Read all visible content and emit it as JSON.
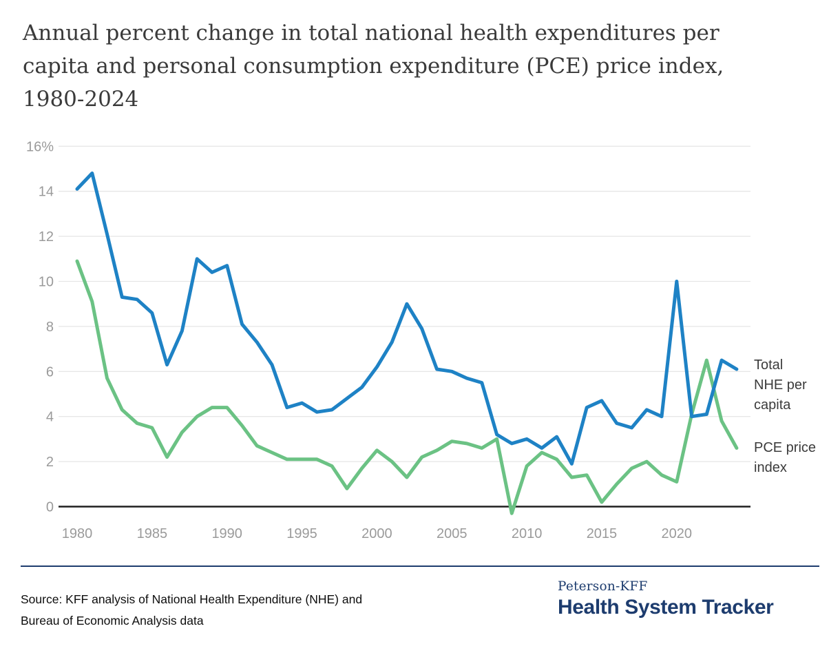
{
  "title_lines": [
    "Annual percent change in total national health expenditures per",
    "capita and personal consumption expenditure (PCE) price index,",
    "1980-2024"
  ],
  "chart_data": {
    "type": "line",
    "x": [
      1980,
      1981,
      1982,
      1983,
      1984,
      1985,
      1986,
      1987,
      1988,
      1989,
      1990,
      1991,
      1992,
      1993,
      1994,
      1995,
      1996,
      1997,
      1998,
      1999,
      2000,
      2001,
      2002,
      2003,
      2004,
      2005,
      2006,
      2007,
      2008,
      2009,
      2010,
      2011,
      2012,
      2013,
      2014,
      2015,
      2016,
      2017,
      2018,
      2019,
      2020,
      2021,
      2022,
      2023,
      2024
    ],
    "series": [
      {
        "name": "Total NHE per capita",
        "color": "#1e82c5",
        "values": [
          14.1,
          14.8,
          12.1,
          9.3,
          9.2,
          8.6,
          6.3,
          7.8,
          11.0,
          10.4,
          10.7,
          8.1,
          7.3,
          6.3,
          4.4,
          4.6,
          4.2,
          4.3,
          4.8,
          5.3,
          6.2,
          7.3,
          9.0,
          7.9,
          6.1,
          6.0,
          5.7,
          5.5,
          3.2,
          2.8,
          3.0,
          2.6,
          3.1,
          1.9,
          4.4,
          4.7,
          3.7,
          3.5,
          4.3,
          4.0,
          10.0,
          4.0,
          4.1,
          6.5,
          6.1
        ]
      },
      {
        "name": "PCE price index",
        "color": "#6bc284",
        "values": [
          10.9,
          9.1,
          5.7,
          4.3,
          3.7,
          3.5,
          2.2,
          3.3,
          4.0,
          4.4,
          4.4,
          3.6,
          2.7,
          2.4,
          2.1,
          2.1,
          2.1,
          1.8,
          0.8,
          1.7,
          2.5,
          2.0,
          1.3,
          2.2,
          2.5,
          2.9,
          2.8,
          2.6,
          3.0,
          -0.3,
          1.8,
          2.4,
          2.1,
          1.3,
          1.4,
          0.2,
          1.0,
          1.7,
          2.0,
          1.4,
          1.1,
          4.1,
          6.5,
          3.8,
          2.6
        ]
      }
    ],
    "title": "Annual percent change in total national health expenditures per capita and personal consumption expenditure (PCE) price index, 1980-2024",
    "xlabel": "",
    "ylabel": "",
    "ylim": [
      0,
      16
    ],
    "xlim": [
      1980,
      2024
    ],
    "grid": "horizontal",
    "legend_position": "right-of-line-ends",
    "y_ticks": [
      0,
      2,
      4,
      6,
      8,
      10,
      12,
      14,
      16
    ],
    "y_tick_labels": [
      "0",
      "2",
      "4",
      "6",
      "8",
      "10",
      "12",
      "14",
      "16%"
    ],
    "x_ticks": [
      1980,
      1985,
      1990,
      1995,
      2000,
      2005,
      2010,
      2015,
      2020
    ],
    "x_tick_labels": [
      "1980",
      "1985",
      "1990",
      "1995",
      "2000",
      "2005",
      "2010",
      "2015",
      "2020"
    ]
  },
  "right_labels": {
    "nhe_lines": [
      "Total",
      "NHE per",
      "capita"
    ],
    "pce_lines": [
      "PCE price",
      "index"
    ]
  },
  "footer": {
    "source_lines": [
      "Source: KFF analysis of National Health Expenditure (NHE) and",
      "Bureau of Economic Analysis data"
    ],
    "brand_small": "Peterson-KFF",
    "brand_large": "Health System Tracker"
  },
  "colors": {
    "nhe_line": "#1e82c5",
    "pce_line": "#6bc284",
    "gridline": "#e6e6e6",
    "zero_axis": "#1f1f1f",
    "tick_text": "#9a9a9a",
    "title_text": "#3a3a3a",
    "series_label_text": "#3b3b3b",
    "brand_navy": "#1d3c6e",
    "source_text": "#0e0e0e",
    "background": "#ffffff"
  }
}
